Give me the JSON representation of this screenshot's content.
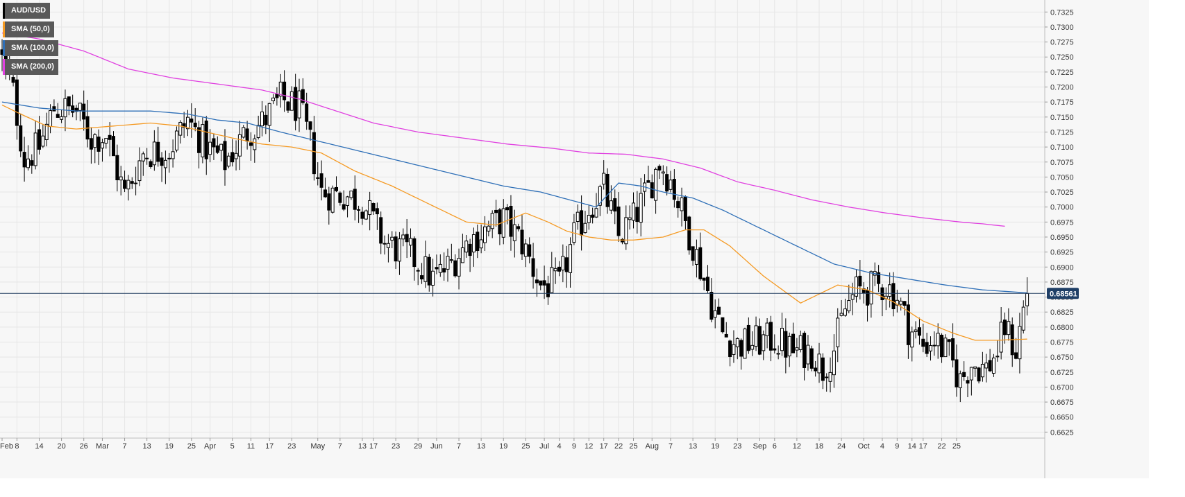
{
  "chart_data": {
    "type": "candlestick",
    "symbol": "AUD/USD",
    "last_price": "0.68561",
    "ylim": [
      0.6615,
      0.7345
    ],
    "y_ticks": [
      "0.7325",
      "0.7300",
      "0.7275",
      "0.7250",
      "0.7225",
      "0.7200",
      "0.7175",
      "0.7150",
      "0.7125",
      "0.7100",
      "0.7075",
      "0.7050",
      "0.7025",
      "0.7000",
      "0.6975",
      "0.6950",
      "0.6925",
      "0.6900",
      "0.6875",
      "0.6850",
      "0.6825",
      "0.6800",
      "0.6775",
      "0.6750",
      "0.6725",
      "0.6700",
      "0.6675",
      "0.6650",
      "0.6625"
    ],
    "x_tick_labels": [
      "Feb",
      "8",
      "14",
      "20",
      "26",
      "Mar",
      "7",
      "13",
      "19",
      "25",
      "Apr",
      "5",
      "11",
      "17",
      "23",
      "May",
      "7",
      "13",
      "17",
      "23",
      "29",
      "Jun",
      "7",
      "13",
      "19",
      "25",
      "Jul",
      "4",
      "9",
      "12",
      "17",
      "22",
      "25",
      "Aug",
      "7",
      "13",
      "19",
      "23",
      "Sep",
      "6",
      "12",
      "18",
      "24",
      "Oct",
      "4",
      "9",
      "14",
      "17",
      "22",
      "25"
    ],
    "legend": [
      {
        "label": "AUD/USD",
        "color": "#000000"
      },
      {
        "label": "SMA (50,0)",
        "color": "#f59a23"
      },
      {
        "label": "SMA (100,0)",
        "color": "#2e6fb7"
      },
      {
        "label": "SMA (200,0)",
        "color": "#e040e0"
      }
    ],
    "colors": {
      "up": "#ffffff",
      "down": "#000000",
      "sma50": "#f59a23",
      "sma100": "#2e6fb7",
      "sma200": "#e040e0",
      "price_line": "#1f3a5f",
      "grid": "#e6e6e6",
      "plot_bg": "#f7f7f7"
    },
    "close_anchors": [
      [
        0,
        0.7245
      ],
      [
        3,
        0.719
      ],
      [
        6,
        0.708
      ],
      [
        10,
        0.71
      ],
      [
        14,
        0.7165
      ],
      [
        20,
        0.716
      ],
      [
        24,
        0.7115
      ],
      [
        28,
        0.712
      ],
      [
        33,
        0.702
      ],
      [
        38,
        0.709
      ],
      [
        45,
        0.7095
      ],
      [
        50,
        0.7145
      ],
      [
        55,
        0.71
      ],
      [
        60,
        0.7075
      ],
      [
        66,
        0.7125
      ],
      [
        70,
        0.714
      ],
      [
        75,
        0.718
      ],
      [
        80,
        0.7165
      ],
      [
        83,
        0.7105
      ],
      [
        86,
        0.7025
      ],
      [
        92,
        0.702
      ],
      [
        97,
        0.701
      ],
      [
        103,
        0.694
      ],
      [
        110,
        0.692
      ],
      [
        116,
        0.688
      ],
      [
        120,
        0.69
      ],
      [
        126,
        0.6945
      ],
      [
        131,
        0.6965
      ],
      [
        135,
        0.698
      ],
      [
        140,
        0.694
      ],
      [
        145,
        0.687
      ],
      [
        150,
        0.687
      ],
      [
        154,
        0.695
      ],
      [
        158,
        0.7
      ],
      [
        162,
        0.703
      ],
      [
        166,
        0.695
      ],
      [
        170,
        0.698
      ],
      [
        174,
        0.703
      ],
      [
        177,
        0.7075
      ],
      [
        180,
        0.7045
      ],
      [
        184,
        0.6975
      ],
      [
        188,
        0.69
      ],
      [
        191,
        0.684
      ],
      [
        194,
        0.679
      ],
      [
        198,
        0.677
      ],
      [
        203,
        0.6775
      ],
      [
        208,
        0.678
      ],
      [
        213,
        0.676
      ],
      [
        218,
        0.676
      ],
      [
        221,
        0.673
      ],
      [
        224,
        0.6765
      ],
      [
        227,
        0.683
      ],
      [
        230,
        0.686
      ],
      [
        234,
        0.6865
      ],
      [
        238,
        0.687
      ],
      [
        241,
        0.685
      ],
      [
        244,
        0.68
      ],
      [
        248,
        0.677
      ],
      [
        251,
        0.678
      ],
      [
        255,
        0.675
      ],
      [
        258,
        0.671
      ],
      [
        261,
        0.674
      ],
      [
        265,
        0.673
      ],
      [
        268,
        0.676
      ],
      [
        270,
        0.68
      ],
      [
        273,
        0.676
      ],
      [
        275,
        0.683
      ],
      [
        276,
        0.6856
      ]
    ],
    "sma50_anchors": [
      [
        0,
        0.717
      ],
      [
        5,
        0.7155
      ],
      [
        12,
        0.7135
      ],
      [
        20,
        0.713
      ],
      [
        30,
        0.7135
      ],
      [
        40,
        0.714
      ],
      [
        48,
        0.7135
      ],
      [
        55,
        0.7125
      ],
      [
        62,
        0.7115
      ],
      [
        70,
        0.7105
      ],
      [
        78,
        0.71
      ],
      [
        86,
        0.709
      ],
      [
        95,
        0.706
      ],
      [
        105,
        0.7035
      ],
      [
        115,
        0.7005
      ],
      [
        125,
        0.6975
      ],
      [
        133,
        0.697
      ],
      [
        141,
        0.699
      ],
      [
        147,
        0.6975
      ],
      [
        152,
        0.696
      ],
      [
        158,
        0.695
      ],
      [
        164,
        0.6945
      ],
      [
        170,
        0.6945
      ],
      [
        178,
        0.695
      ],
      [
        184,
        0.6962
      ],
      [
        189,
        0.6962
      ],
      [
        196,
        0.6935
      ],
      [
        205,
        0.6885
      ],
      [
        215,
        0.684
      ],
      [
        225,
        0.687
      ],
      [
        233,
        0.6862
      ],
      [
        240,
        0.6842
      ],
      [
        248,
        0.681
      ],
      [
        256,
        0.679
      ],
      [
        262,
        0.6778
      ],
      [
        268,
        0.6778
      ],
      [
        276,
        0.678
      ]
    ],
    "sma100_anchors": [
      [
        0,
        0.7175
      ],
      [
        10,
        0.7165
      ],
      [
        20,
        0.716
      ],
      [
        30,
        0.716
      ],
      [
        40,
        0.716
      ],
      [
        50,
        0.7155
      ],
      [
        58,
        0.7145
      ],
      [
        66,
        0.714
      ],
      [
        75,
        0.7125
      ],
      [
        85,
        0.711
      ],
      [
        95,
        0.7095
      ],
      [
        105,
        0.708
      ],
      [
        115,
        0.7065
      ],
      [
        125,
        0.705
      ],
      [
        135,
        0.7035
      ],
      [
        145,
        0.7025
      ],
      [
        154,
        0.701
      ],
      [
        160,
        0.7
      ],
      [
        166,
        0.704
      ],
      [
        172,
        0.7035
      ],
      [
        178,
        0.7025
      ],
      [
        186,
        0.7015
      ],
      [
        194,
        0.6995
      ],
      [
        204,
        0.6965
      ],
      [
        214,
        0.6935
      ],
      [
        224,
        0.6905
      ],
      [
        234,
        0.689
      ],
      [
        244,
        0.688
      ],
      [
        254,
        0.687
      ],
      [
        264,
        0.6862
      ],
      [
        276,
        0.6857
      ]
    ],
    "sma200_anchors": [
      [
        0,
        0.729
      ],
      [
        10,
        0.728
      ],
      [
        22,
        0.726
      ],
      [
        34,
        0.723
      ],
      [
        46,
        0.7215
      ],
      [
        58,
        0.7205
      ],
      [
        70,
        0.7195
      ],
      [
        80,
        0.718
      ],
      [
        90,
        0.716
      ],
      [
        100,
        0.714
      ],
      [
        112,
        0.7125
      ],
      [
        124,
        0.7115
      ],
      [
        136,
        0.7105
      ],
      [
        148,
        0.7098
      ],
      [
        158,
        0.709
      ],
      [
        168,
        0.7088
      ],
      [
        178,
        0.708
      ],
      [
        188,
        0.7065
      ],
      [
        198,
        0.7042
      ],
      [
        208,
        0.7028
      ],
      [
        218,
        0.7012
      ],
      [
        228,
        0.7
      ],
      [
        238,
        0.699
      ],
      [
        248,
        0.6982
      ],
      [
        258,
        0.6975
      ],
      [
        264,
        0.6972
      ],
      [
        270,
        0.6968
      ]
    ]
  }
}
